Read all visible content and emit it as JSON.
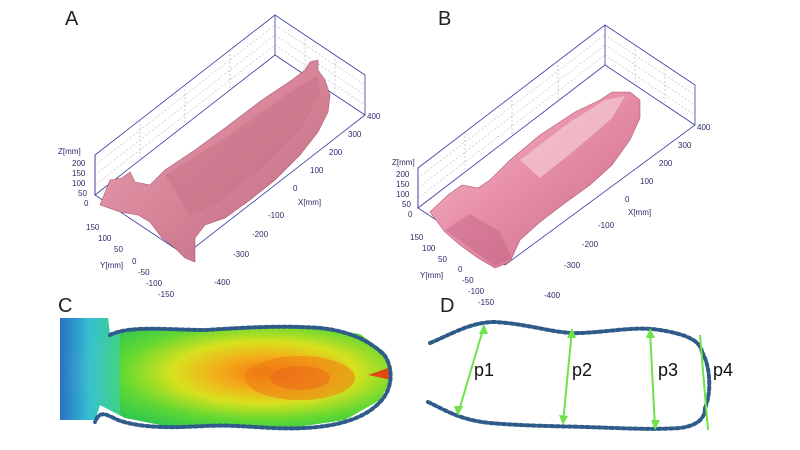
{
  "panels": {
    "a": {
      "letter": "A"
    },
    "b": {
      "letter": "B"
    },
    "c": {
      "letter": "C"
    },
    "d": {
      "letter": "D"
    }
  },
  "axes": {
    "z_title": "Z[mm]",
    "y_title": "Y[mm]",
    "x_title": "X[mm]",
    "z_ticks": [
      "200",
      "150",
      "100",
      "50",
      "0"
    ],
    "y_ticks": [
      "150",
      "100",
      "50",
      "0",
      "-50",
      "-100",
      "-150"
    ],
    "x_ticks": [
      "400",
      "300",
      "200",
      "100",
      "0",
      "-100",
      "-200",
      "-300",
      "-400"
    ]
  },
  "measures": {
    "p1": "p1",
    "p2": "p2",
    "p3": "p3",
    "p4": "p4"
  },
  "colors": {
    "surface_a": "#d98a9c",
    "surface_b": "#e58aa4",
    "outline": "#2f5b8a",
    "arrow": "#6de24a"
  }
}
